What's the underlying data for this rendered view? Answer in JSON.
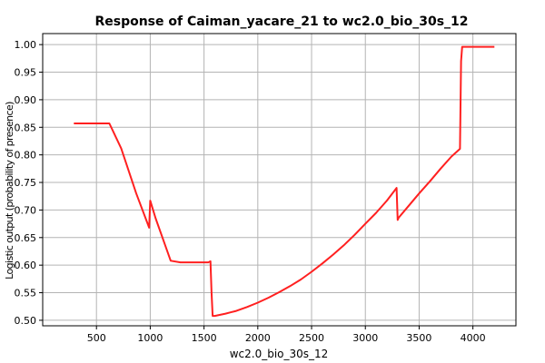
{
  "chart_data": {
    "type": "line",
    "title": "Response of Caiman_yacare_21 to wc2.0_bio_30s_12",
    "xlabel": "wc2.0_bio_30s_12",
    "ylabel": "Logistic output (probability of presence)",
    "xlim": [
      0,
      4400
    ],
    "ylim": [
      0.49,
      1.02
    ],
    "xticks": [
      500,
      1000,
      1500,
      2000,
      2500,
      3000,
      3500,
      4000
    ],
    "xtick_labels": [
      "500",
      "1000",
      "1500",
      "2000",
      "2500",
      "3000",
      "3500",
      "4000"
    ],
    "yticks": [
      0.5,
      0.55,
      0.6,
      0.65,
      0.7,
      0.75,
      0.8,
      0.85,
      0.9,
      0.95,
      1.0
    ],
    "ytick_labels": [
      "0.50",
      "0.55",
      "0.60",
      "0.65",
      "0.70",
      "0.75",
      "0.80",
      "0.85",
      "0.90",
      "0.95",
      "1.00"
    ],
    "grid": true,
    "legend": "none",
    "series": [
      {
        "color": "#ff2020",
        "x": [
          290,
          500,
          620,
          730,
          870,
          990,
          1000,
          1050,
          1190,
          1280,
          1400,
          1540,
          1560,
          1570,
          1580,
          1600,
          1700,
          1800,
          1900,
          2000,
          2100,
          2200,
          2300,
          2400,
          2500,
          2600,
          2700,
          2800,
          2900,
          3000,
          3100,
          3200,
          3290,
          3300,
          3310,
          3400,
          3500,
          3600,
          3700,
          3800,
          3880,
          3890,
          3900,
          3910,
          4000,
          4100,
          4200
        ],
        "y": [
          0.857,
          0.857,
          0.857,
          0.812,
          0.73,
          0.668,
          0.717,
          0.685,
          0.608,
          0.605,
          0.605,
          0.605,
          0.607,
          0.55,
          0.508,
          0.508,
          0.512,
          0.517,
          0.524,
          0.532,
          0.541,
          0.551,
          0.562,
          0.574,
          0.588,
          0.603,
          0.619,
          0.636,
          0.655,
          0.675,
          0.695,
          0.717,
          0.74,
          0.682,
          0.686,
          0.707,
          0.73,
          0.752,
          0.775,
          0.797,
          0.811,
          0.97,
          0.996,
          0.996,
          0.996,
          0.996,
          0.996
        ]
      }
    ]
  }
}
